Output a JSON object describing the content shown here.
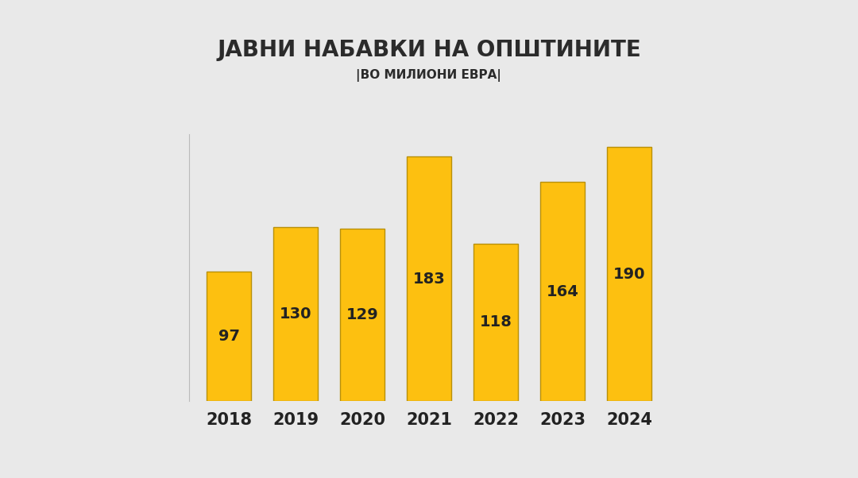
{
  "chart_data": {
    "type": "bar",
    "title": "ЈАВНИ НАБАВКИ НА ОПШТИНИТЕ",
    "subtitle": "|ВО МИЛИОНИ ЕВРА|",
    "categories": [
      "2018",
      "2019",
      "2020",
      "2021",
      "2022",
      "2023",
      "2024"
    ],
    "values": [
      97,
      130,
      129,
      183,
      118,
      164,
      190
    ],
    "color": "#fdc010",
    "ylim": [
      0,
      200
    ],
    "grid": false,
    "data_labels": true,
    "tick_labels": "x"
  }
}
